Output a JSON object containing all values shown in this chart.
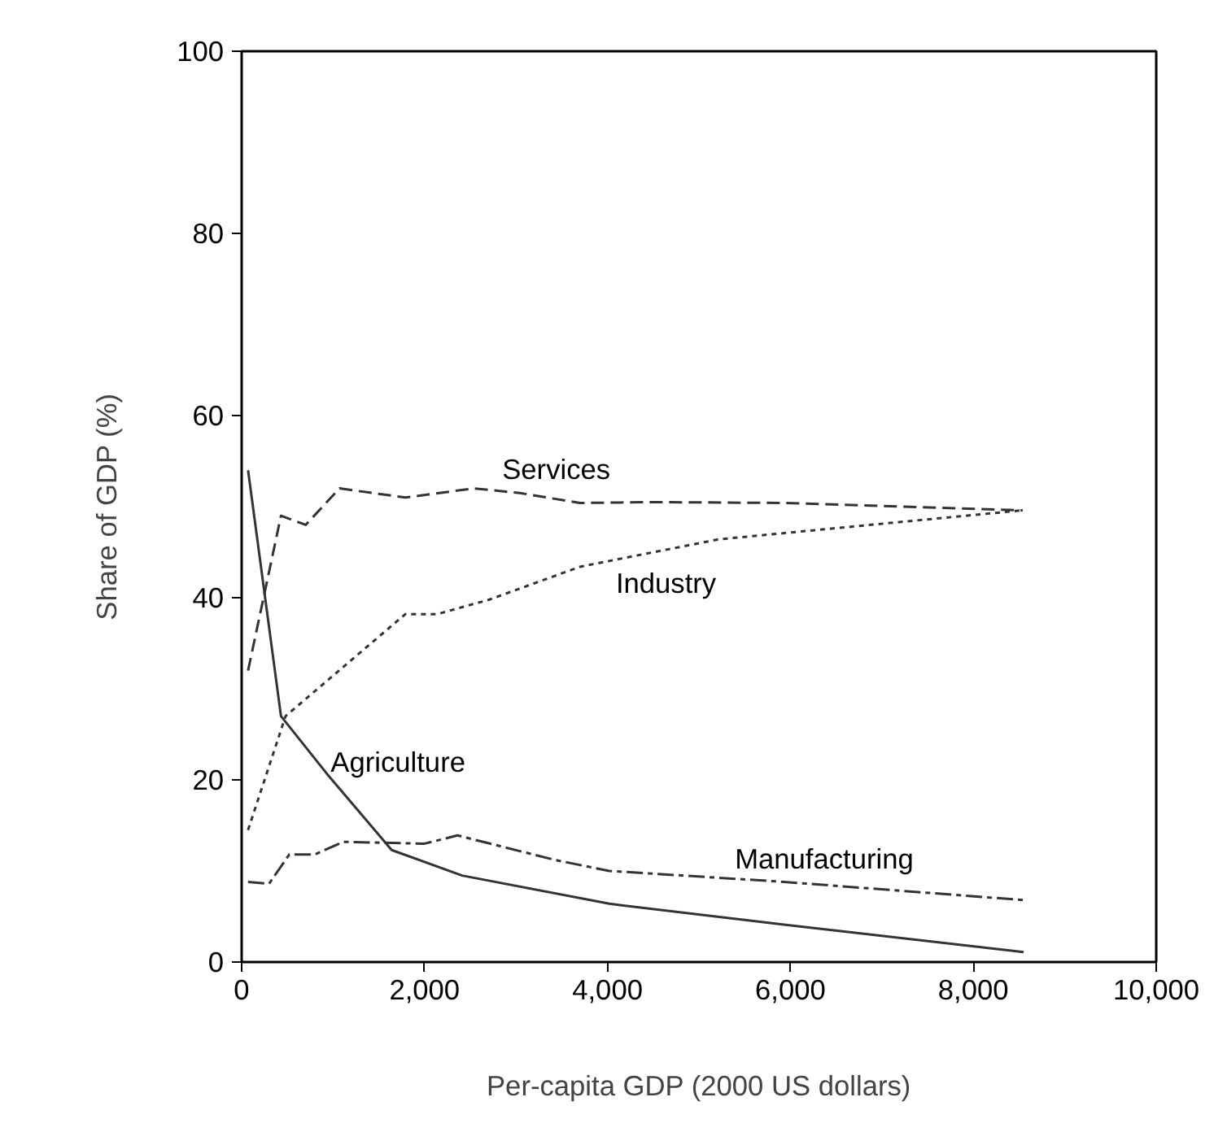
{
  "chart_data": {
    "type": "line",
    "xlabel": "Per-capita GDP (2000 US dollars)",
    "ylabel": "Share of GDP (%)",
    "xlim": [
      0,
      10000
    ],
    "ylim": [
      0,
      100
    ],
    "xticks": [
      {
        "value": 0,
        "label": "0"
      },
      {
        "value": 2000,
        "label": "2,000"
      },
      {
        "value": 4000,
        "label": "4,000"
      },
      {
        "value": 6000,
        "label": "6,000"
      },
      {
        "value": 8000,
        "label": "8,000"
      },
      {
        "value": 10000,
        "label": "10,000"
      }
    ],
    "yticks": [
      0,
      20,
      40,
      60,
      80,
      100
    ],
    "grid": false,
    "series": [
      {
        "color": "#333333",
        "line_style": "dashed",
        "x": [
          70,
          430,
          700,
          1070,
          1790,
          2540,
          3040,
          3700,
          4500,
          5930,
          8540
        ],
        "values": [
          32,
          49,
          48,
          52,
          51,
          52,
          51.5,
          50.4,
          50.5,
          50.4,
          49.6
        ]
      },
      {
        "color": "#333333",
        "line_style": "dotted",
        "x": [
          70,
          480,
          1790,
          2140,
          2710,
          3700,
          5210,
          8540
        ],
        "values": [
          14.5,
          27,
          38.2,
          38.2,
          39.8,
          43.4,
          46.4,
          49.6
        ]
      },
      {
        "color": "#333333",
        "line_style": "solid",
        "x": [
          70,
          430,
          930,
          1640,
          2410,
          4020,
          5930,
          8550
        ],
        "values": [
          54,
          27,
          20.7,
          12.3,
          9.5,
          6.4,
          4.1,
          1.1
        ]
      },
      {
        "color": "#333333",
        "line_style": "dashdot",
        "x": [
          70,
          300,
          520,
          800,
          1110,
          2000,
          2360,
          3430,
          4020,
          5930,
          8550
        ],
        "values": [
          8.8,
          8.6,
          11.8,
          11.8,
          13.2,
          13,
          13.9,
          11.2,
          10,
          8.8,
          6.8
        ]
      }
    ],
    "annotations": [
      {
        "text": "Services",
        "x": 3440,
        "y": 50.9
      },
      {
        "text": "Industry",
        "x": 4640,
        "y": 45.2
      },
      {
        "text": "Agriculture",
        "x": 830,
        "y": 22
      },
      {
        "text": "Manufacturing",
        "x": 6370,
        "y": 8.5
      }
    ]
  }
}
